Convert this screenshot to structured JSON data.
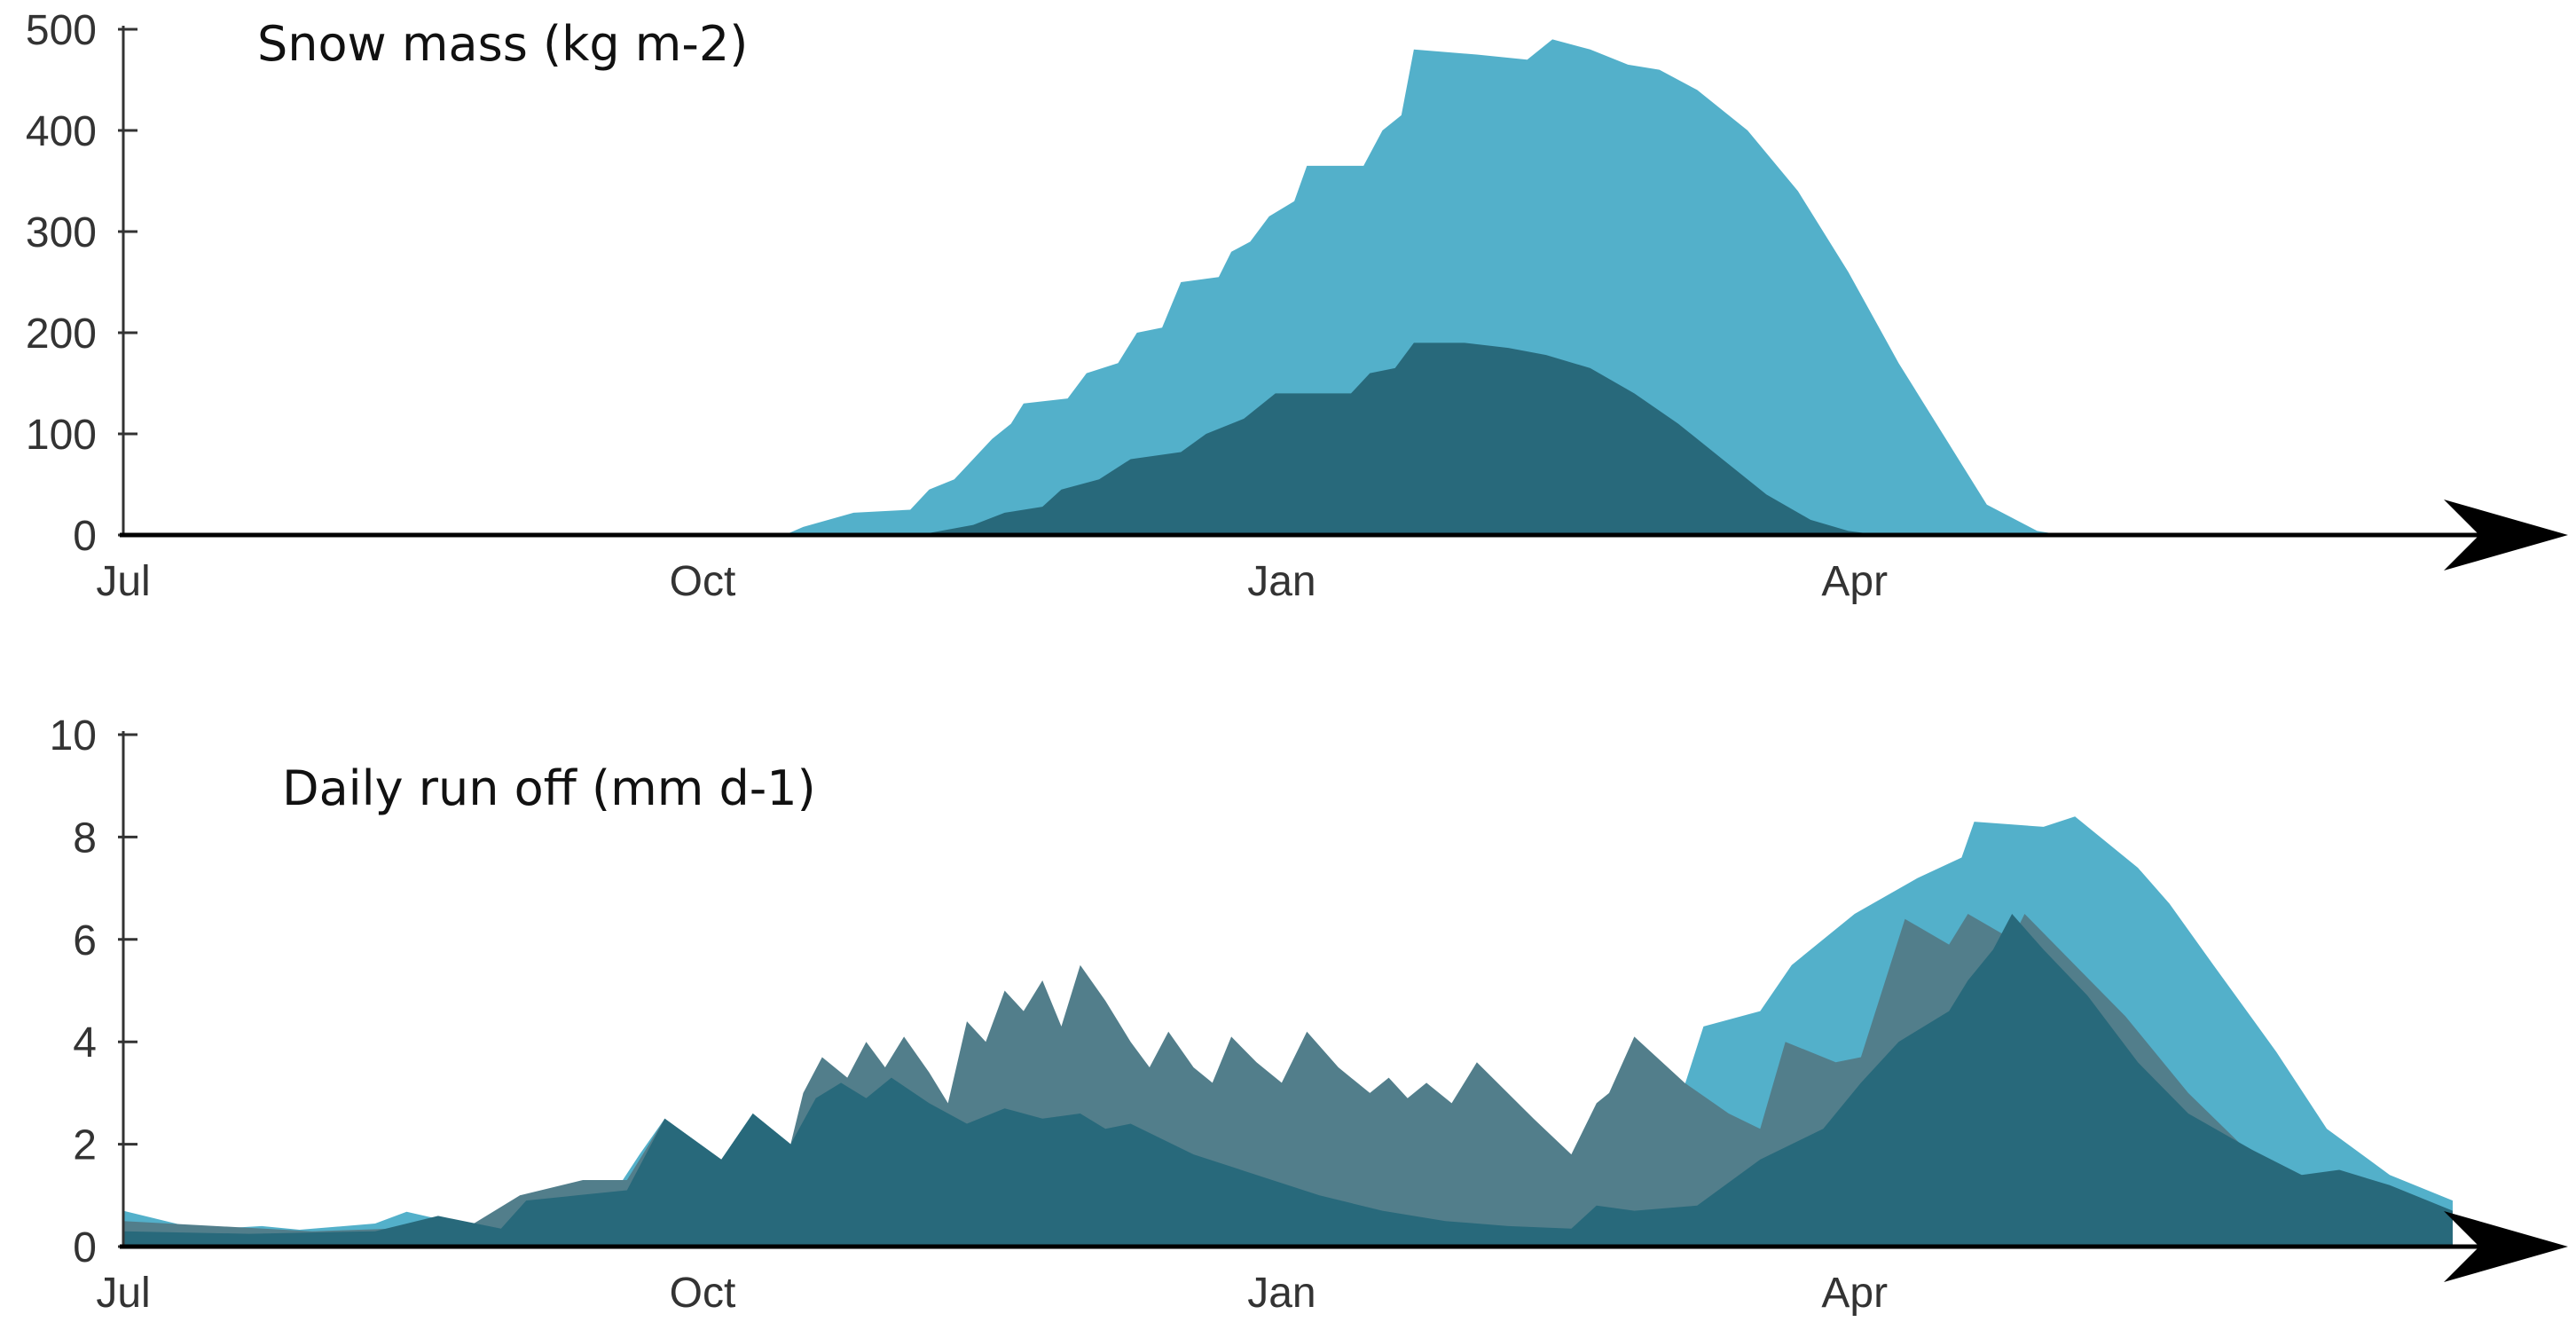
{
  "colors": {
    "light_blue": "#53b0ca",
    "dark_teal": "#28697b",
    "grey_teal": "#527e8b",
    "axis": "#000000",
    "tick": "#333333"
  },
  "chart_data": [
    {
      "type": "area",
      "title": "Snow mass  (kg m-2)",
      "xlabel": "",
      "ylabel": "",
      "ylim": [
        0,
        500
      ],
      "yticks": [
        0,
        100,
        200,
        300,
        400,
        500
      ],
      "x_tick_labels": [
        "Jul",
        "Oct",
        "Jan",
        "Apr"
      ],
      "x_tick_days": [
        0,
        92,
        184,
        275
      ],
      "xlim_days": [
        0,
        370
      ],
      "grid": false,
      "legend": "none",
      "series": [
        {
          "color": "#53b0ca",
          "points": [
            [
              0,
              0
            ],
            [
              95,
              0
            ],
            [
              105,
              0
            ],
            [
              108,
              8
            ],
            [
              112,
              15
            ],
            [
              116,
              22
            ],
            [
              125,
              25
            ],
            [
              128,
              45
            ],
            [
              132,
              55
            ],
            [
              135,
              75
            ],
            [
              138,
              95
            ],
            [
              141,
              110
            ],
            [
              143,
              130
            ],
            [
              150,
              135
            ],
            [
              153,
              160
            ],
            [
              158,
              170
            ],
            [
              161,
              200
            ],
            [
              165,
              205
            ],
            [
              168,
              250
            ],
            [
              174,
              255
            ],
            [
              176,
              280
            ],
            [
              179,
              290
            ],
            [
              182,
              315
            ],
            [
              186,
              330
            ],
            [
              188,
              365
            ],
            [
              197,
              365
            ],
            [
              200,
              400
            ],
            [
              203,
              415
            ],
            [
              205,
              480
            ],
            [
              215,
              475
            ],
            [
              223,
              470
            ],
            [
              227,
              490
            ],
            [
              233,
              480
            ],
            [
              239,
              465
            ],
            [
              244,
              460
            ],
            [
              250,
              440
            ],
            [
              258,
              400
            ],
            [
              266,
              340
            ],
            [
              274,
              260
            ],
            [
              282,
              170
            ],
            [
              290,
              90
            ],
            [
              296,
              30
            ],
            [
              304,
              4
            ],
            [
              308,
              0
            ],
            [
              370,
              0
            ]
          ]
        },
        {
          "color": "#28697b",
          "points": [
            [
              0,
              0
            ],
            [
              120,
              0
            ],
            [
              128,
              2
            ],
            [
              135,
              10
            ],
            [
              140,
              22
            ],
            [
              146,
              28
            ],
            [
              149,
              45
            ],
            [
              155,
              55
            ],
            [
              160,
              75
            ],
            [
              168,
              82
            ],
            [
              172,
              100
            ],
            [
              178,
              115
            ],
            [
              183,
              140
            ],
            [
              195,
              140
            ],
            [
              198,
              160
            ],
            [
              202,
              165
            ],
            [
              205,
              190
            ],
            [
              213,
              190
            ],
            [
              220,
              185
            ],
            [
              226,
              178
            ],
            [
              233,
              165
            ],
            [
              240,
              140
            ],
            [
              247,
              110
            ],
            [
              254,
              75
            ],
            [
              261,
              40
            ],
            [
              268,
              15
            ],
            [
              274,
              4
            ],
            [
              279,
              0
            ],
            [
              370,
              0
            ]
          ]
        }
      ]
    },
    {
      "type": "area",
      "title": "Daily run off (mm d-1)",
      "xlabel": "",
      "ylabel": "",
      "ylim": [
        0,
        10
      ],
      "yticks": [
        0,
        2,
        4,
        6,
        8,
        10
      ],
      "x_tick_labels": [
        "Jul",
        "Oct",
        "Jan",
        "Apr"
      ],
      "x_tick_days": [
        0,
        92,
        184,
        275
      ],
      "xlim_days": [
        0,
        370
      ],
      "grid": false,
      "legend": "none",
      "series": [
        {
          "color": "#53b0ca",
          "points": [
            [
              0,
              0.7
            ],
            [
              10,
              0.4
            ],
            [
              15,
              0.35
            ],
            [
              22,
              0.4
            ],
            [
              28,
              0.33
            ],
            [
              40,
              0.45
            ],
            [
              45,
              0.68
            ],
            [
              55,
              0.4
            ],
            [
              60,
              0.3
            ],
            [
              63,
              1.0
            ],
            [
              68,
              0.9
            ],
            [
              73,
              1.2
            ],
            [
              78,
              1.05
            ],
            [
              82,
              1.8
            ],
            [
              86,
              2.5
            ],
            [
              95,
              1.7
            ],
            [
              100,
              2.6
            ],
            [
              106,
              2.0
            ],
            [
              110,
              2.5
            ],
            [
              115,
              3.2
            ],
            [
              118,
              3.0
            ],
            [
              130,
              2.2
            ],
            [
              140,
              2.0
            ],
            [
              150,
              1.6
            ],
            [
              160,
              1.3
            ],
            [
              175,
              0.8
            ],
            [
              190,
              0.6
            ],
            [
              203,
              0.35
            ],
            [
              210,
              0.8
            ],
            [
              225,
              0.7
            ],
            [
              236,
              1.0
            ],
            [
              245,
              2.0
            ],
            [
              251,
              4.3
            ],
            [
              260,
              4.6
            ],
            [
              265,
              5.5
            ],
            [
              275,
              6.5
            ],
            [
              285,
              7.2
            ],
            [
              292,
              7.6
            ],
            [
              294,
              8.3
            ],
            [
              305,
              8.2
            ],
            [
              310,
              8.4
            ],
            [
              320,
              7.4
            ],
            [
              325,
              6.7
            ],
            [
              332,
              5.5
            ],
            [
              342,
              3.8
            ],
            [
              350,
              2.3
            ],
            [
              360,
              1.4
            ],
            [
              370,
              0.9
            ],
            [
              370,
              0
            ]
          ]
        },
        {
          "color": "#527e8b",
          "points": [
            [
              0,
              0.5
            ],
            [
              30,
              0.3
            ],
            [
              55,
              0.4
            ],
            [
              63,
              1.0
            ],
            [
              73,
              1.3
            ],
            [
              80,
              1.3
            ],
            [
              86,
              2.5
            ],
            [
              95,
              1.7
            ],
            [
              100,
              2.6
            ],
            [
              106,
              2.0
            ],
            [
              108,
              3.0
            ],
            [
              111,
              3.7
            ],
            [
              115,
              3.3
            ],
            [
              118,
              4.0
            ],
            [
              121,
              3.5
            ],
            [
              124,
              4.1
            ],
            [
              128,
              3.4
            ],
            [
              131,
              2.8
            ],
            [
              134,
              4.4
            ],
            [
              137,
              4.0
            ],
            [
              140,
              5.0
            ],
            [
              143,
              4.6
            ],
            [
              146,
              5.2
            ],
            [
              149,
              4.3
            ],
            [
              152,
              5.5
            ],
            [
              156,
              4.8
            ],
            [
              160,
              4.0
            ],
            [
              163,
              3.5
            ],
            [
              166,
              4.2
            ],
            [
              170,
              3.5
            ],
            [
              173,
              3.2
            ],
            [
              176,
              4.1
            ],
            [
              180,
              3.6
            ],
            [
              184,
              3.2
            ],
            [
              188,
              4.2
            ],
            [
              193,
              3.5
            ],
            [
              198,
              3.0
            ],
            [
              201,
              3.3
            ],
            [
              204,
              2.9
            ],
            [
              207,
              3.2
            ],
            [
              211,
              2.8
            ],
            [
              215,
              3.6
            ],
            [
              224,
              2.5
            ],
            [
              230,
              1.8
            ],
            [
              234,
              2.8
            ],
            [
              236,
              3.0
            ],
            [
              240,
              4.1
            ],
            [
              248,
              3.2
            ],
            [
              255,
              2.6
            ],
            [
              260,
              2.3
            ],
            [
              264,
              4.0
            ],
            [
              272,
              3.6
            ],
            [
              276,
              3.7
            ],
            [
              283,
              6.4
            ],
            [
              290,
              5.9
            ],
            [
              293,
              6.5
            ],
            [
              300,
              6.0
            ],
            [
              302,
              6.5
            ],
            [
              310,
              5.5
            ],
            [
              318,
              4.5
            ],
            [
              328,
              3.0
            ],
            [
              338,
              1.8
            ],
            [
              350,
              1.2
            ],
            [
              360,
              0.6
            ],
            [
              370,
              0.3
            ],
            [
              370,
              0
            ]
          ]
        },
        {
          "color": "#28697b",
          "points": [
            [
              0,
              0.3
            ],
            [
              20,
              0.25
            ],
            [
              40,
              0.3
            ],
            [
              50,
              0.6
            ],
            [
              60,
              0.35
            ],
            [
              64,
              0.9
            ],
            [
              72,
              1.0
            ],
            [
              80,
              1.1
            ],
            [
              86,
              2.5
            ],
            [
              95,
              1.7
            ],
            [
              100,
              2.6
            ],
            [
              106,
              2.0
            ],
            [
              110,
              2.9
            ],
            [
              114,
              3.2
            ],
            [
              118,
              2.9
            ],
            [
              122,
              3.3
            ],
            [
              128,
              2.8
            ],
            [
              134,
              2.4
            ],
            [
              140,
              2.7
            ],
            [
              146,
              2.5
            ],
            [
              152,
              2.6
            ],
            [
              156,
              2.3
            ],
            [
              160,
              2.4
            ],
            [
              170,
              1.8
            ],
            [
              180,
              1.4
            ],
            [
              190,
              1.0
            ],
            [
              200,
              0.7
            ],
            [
              210,
              0.5
            ],
            [
              220,
              0.4
            ],
            [
              230,
              0.35
            ],
            [
              234,
              0.8
            ],
            [
              240,
              0.7
            ],
            [
              250,
              0.8
            ],
            [
              260,
              1.7
            ],
            [
              270,
              2.3
            ],
            [
              276,
              3.2
            ],
            [
              282,
              4.0
            ],
            [
              290,
              4.6
            ],
            [
              293,
              5.2
            ],
            [
              297,
              5.8
            ],
            [
              300,
              6.5
            ],
            [
              305,
              5.8
            ],
            [
              312,
              4.9
            ],
            [
              320,
              3.6
            ],
            [
              328,
              2.6
            ],
            [
              338,
              1.9
            ],
            [
              346,
              1.4
            ],
            [
              352,
              1.5
            ],
            [
              360,
              1.2
            ],
            [
              370,
              0.7
            ],
            [
              370,
              0
            ]
          ]
        }
      ]
    }
  ]
}
